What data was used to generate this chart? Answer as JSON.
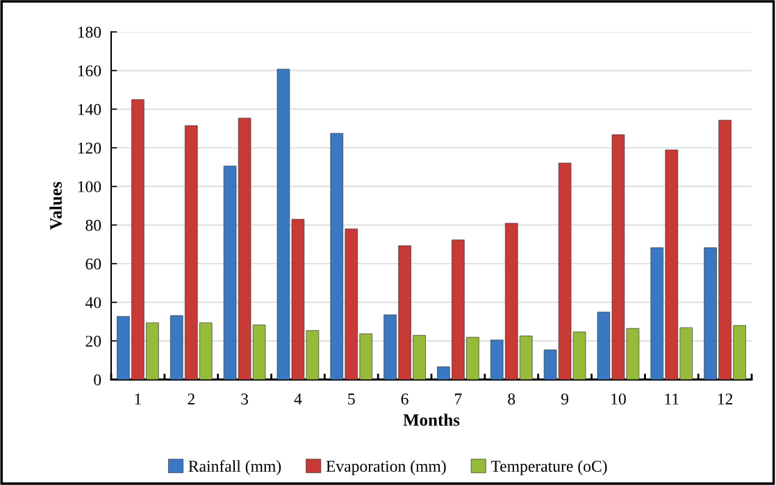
{
  "chart_data": {
    "type": "bar",
    "xlabel": "Months",
    "ylabel": "Values",
    "categories": [
      "1",
      "2",
      "3",
      "4",
      "5",
      "6",
      "7",
      "8",
      "9",
      "10",
      "11",
      "12"
    ],
    "series": [
      {
        "name": "Rainfall (mm)",
        "color": "#3a78c4",
        "values": [
          32.7,
          33.1,
          110.6,
          160.7,
          127.5,
          33.5,
          6.6,
          20.5,
          15.4,
          34.9,
          68.3,
          68.3
        ]
      },
      {
        "name": "Evaporation (mm)",
        "color": "#c83a36",
        "values": [
          145,
          131.5,
          135.4,
          83,
          78,
          69.3,
          72.3,
          80.9,
          112.1,
          126.8,
          118.9,
          134.3
        ]
      },
      {
        "name": "Temperature (oC)",
        "color": "#96bb3a",
        "values": [
          29.4,
          29.4,
          28.3,
          25.4,
          23.7,
          22.9,
          21.9,
          22.6,
          24.7,
          26.5,
          26.9,
          28.0
        ]
      }
    ],
    "ylim": [
      0,
      180
    ],
    "yticks": [
      0,
      20,
      40,
      60,
      80,
      100,
      120,
      140,
      160,
      180
    ],
    "grid": "y",
    "legend": "bottom"
  }
}
